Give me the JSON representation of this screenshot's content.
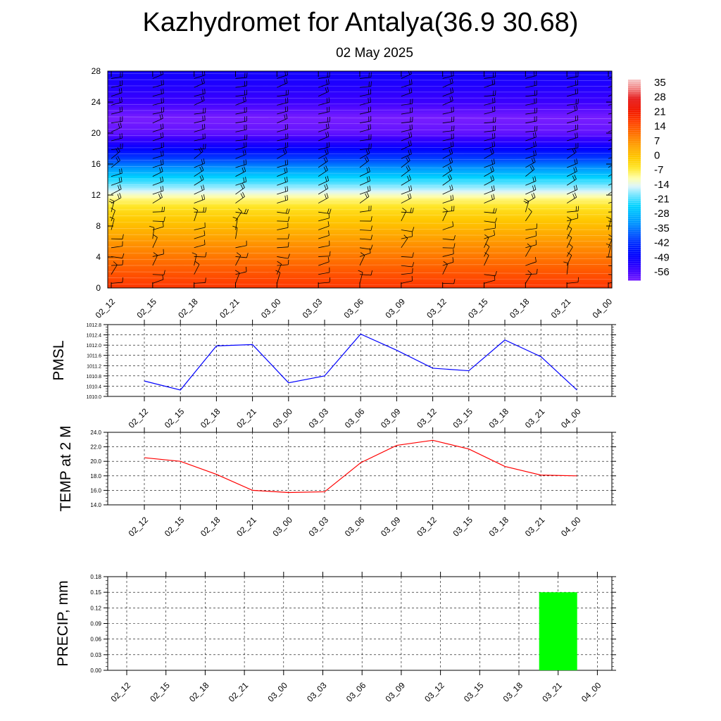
{
  "title": "Kazhydromet for Antalya(36.9 30.68)",
  "subtitle": "02 May 2025",
  "colors": {
    "pmsl_line": "#0000ff",
    "temp_line": "#ff0000",
    "precip_bar": "#00ff00",
    "grid": "#000000",
    "axis": "#000000"
  },
  "chart_data": [
    {
      "type": "heatmap",
      "name": "temperature-wind-cross-section",
      "x_tick_labels": [
        "02_12",
        "02_15",
        "02_18",
        "02_21",
        "03_00",
        "03_03",
        "03_06",
        "03_09",
        "03_12",
        "03_15",
        "03_18",
        "03_21",
        "04_00"
      ],
      "y_ticks": [
        0,
        4,
        8,
        12,
        16,
        20,
        24,
        28
      ],
      "ylim": [
        0,
        28
      ],
      "colorbar": {
        "tick_labels": [
          "35",
          "28",
          "21",
          "14",
          "7",
          "0",
          "-7",
          "-14",
          "-21",
          "-28",
          "-35",
          "-42",
          "-49",
          "-56"
        ],
        "range": [
          -60,
          38
        ]
      },
      "temperature_profile": [
        {
          "level": 0,
          "value": 19
        },
        {
          "level": 2,
          "value": 15
        },
        {
          "level": 4,
          "value": 11
        },
        {
          "level": 6,
          "value": 7
        },
        {
          "level": 8,
          "value": 2
        },
        {
          "level": 10,
          "value": -3
        },
        {
          "level": 11.5,
          "value": -8
        },
        {
          "level": 12.5,
          "value": -14
        },
        {
          "level": 14,
          "value": -22
        },
        {
          "level": 16,
          "value": -35
        },
        {
          "level": 18,
          "value": -48
        },
        {
          "level": 20,
          "value": -58
        },
        {
          "level": 22,
          "value": -60
        },
        {
          "level": 24,
          "value": -55
        },
        {
          "level": 26,
          "value": -52
        },
        {
          "level": 28,
          "value": -50
        }
      ],
      "wind_barbs": "present",
      "grid": false
    },
    {
      "type": "line",
      "ylabel": "PMSL",
      "x_tick_labels": [
        "02_12",
        "02_15",
        "02_18",
        "02_21",
        "03_00",
        "03_03",
        "03_06",
        "03_09",
        "03_12",
        "03_15",
        "03_18",
        "03_21",
        "04_00"
      ],
      "ylim": [
        1010.0,
        1012.8
      ],
      "y_ticks": [
        "1010.0",
        "1010.4",
        "1010.8",
        "1011.2",
        "1011.6",
        "1012.0",
        "1012.4",
        "1012.8"
      ],
      "series": [
        {
          "values": [
            1010.6,
            1010.25,
            1011.97,
            1012.02,
            1010.53,
            1010.8,
            1012.43,
            1011.8,
            1011.1,
            1011.0,
            1012.2,
            1011.55,
            1010.25
          ]
        }
      ],
      "grid": true
    },
    {
      "type": "line",
      "ylabel": "TEMP at 2 M",
      "x_tick_labels": [
        "02_12",
        "02_15",
        "02_18",
        "02_21",
        "03_00",
        "03_03",
        "03_06",
        "03_09",
        "03_12",
        "03_15",
        "03_18",
        "03_21",
        "04_00"
      ],
      "ylim": [
        14.0,
        24.0
      ],
      "y_ticks": [
        "14.0",
        "16.0",
        "18.0",
        "20.0",
        "22.0",
        "24.0"
      ],
      "series": [
        {
          "values": [
            20.5,
            20.0,
            18.2,
            16.0,
            15.7,
            15.8,
            19.8,
            22.2,
            22.9,
            21.7,
            19.3,
            18.1,
            18.0
          ]
        }
      ],
      "grid": true
    },
    {
      "type": "bar",
      "ylabel": "PRECIP, mm",
      "x_tick_labels": [
        "02_12",
        "02_15",
        "02_18",
        "02_21",
        "03_00",
        "03_03",
        "03_06",
        "03_09",
        "03_12",
        "03_15",
        "03_18",
        "03_21",
        "04_00"
      ],
      "ylim": [
        0.0,
        0.18
      ],
      "y_ticks": [
        "0.00",
        "0.03",
        "0.06",
        "0.09",
        "0.12",
        "0.15",
        "0.18"
      ],
      "values": [
        0,
        0,
        0,
        0,
        0,
        0,
        0,
        0,
        0,
        0,
        0,
        0.15,
        0
      ],
      "grid": true
    }
  ]
}
